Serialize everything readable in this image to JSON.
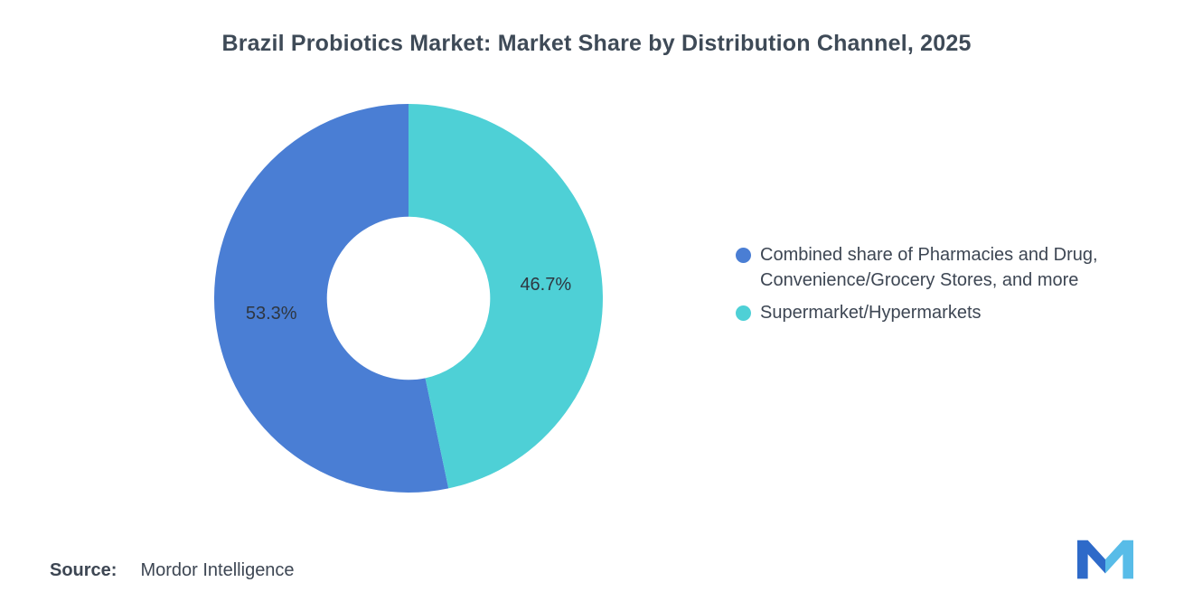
{
  "title": "Brazil Probiotics Market: Market Share by Distribution Channel, 2025",
  "source": {
    "label": "Source:",
    "value": "Mordor Intelligence"
  },
  "chart_data": {
    "type": "pie",
    "subtype": "donut",
    "title": "Brazil Probiotics Market: Market Share by Distribution Channel, 2025",
    "units": "%",
    "inner_radius_ratio": 0.42,
    "start_angle_deg": 0,
    "direction": "counterclockwise",
    "legend_position": "right",
    "slices": [
      {
        "label": "Combined share of Pharmacies and Drug, Convenience/Grocery Stores, and more",
        "value": 53.3,
        "display": "53.3%",
        "color": "#4a7ed4"
      },
      {
        "label": "Supermarket/Hypermarkets",
        "value": 46.7,
        "display": "46.7%",
        "color": "#4ed0d6"
      }
    ]
  },
  "logo": {
    "name": "mordor-intelligence-logo",
    "color_left": "#2e6ac9",
    "color_right": "#58bce8"
  }
}
